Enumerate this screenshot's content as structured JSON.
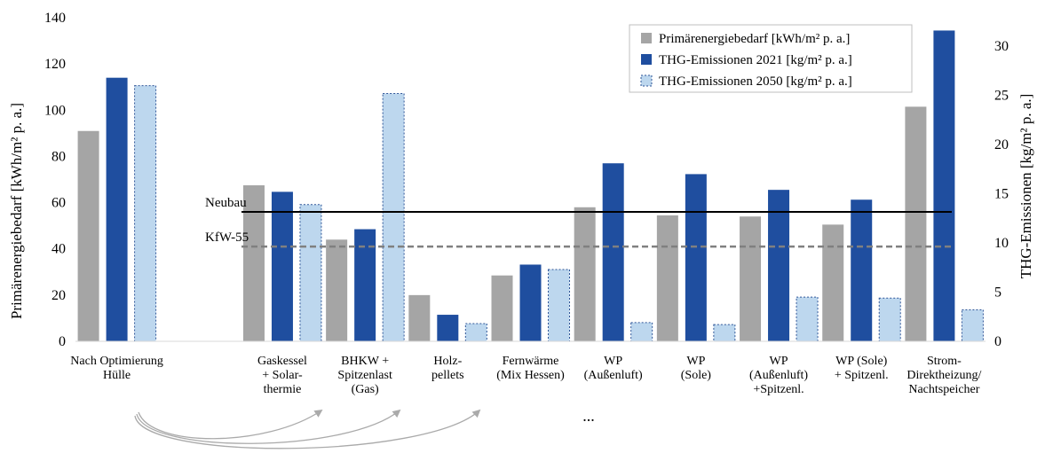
{
  "chart_data": {
    "type": "bar",
    "categories": [
      [
        "Nach Optimierung",
        "Hülle"
      ],
      [],
      [
        "Gaskessel",
        "+ Solar-",
        "thermie"
      ],
      [
        "BHKW +",
        "Spitzenlast",
        "(Gas)"
      ],
      [
        "Holz-",
        "pellets"
      ],
      [
        "Fernwärme",
        "(Mix Hessen)"
      ],
      [
        "WP",
        "(Außenluft)"
      ],
      [
        "WP",
        "(Sole)"
      ],
      [
        "WP",
        "(Außenluft)",
        "+Spitzenl."
      ],
      [
        "WP (Sole)",
        "+ Spitzenl."
      ],
      [
        "Strom-",
        "Direktheizung/",
        "Nachtspeicher"
      ]
    ],
    "series": [
      {
        "name": "Primärenergiebedarf [kWh/m² p. a.]",
        "axis": "left",
        "color": "#a5a5a5",
        "style": "solid",
        "values": [
          91,
          null,
          67.5,
          44,
          20,
          28.5,
          58,
          54.5,
          54,
          50.5,
          101.5
        ]
      },
      {
        "name": "THG-Emissionen 2021 [kg/m² p. a.]",
        "axis": "right",
        "color": "#1f4e9f",
        "style": "solid",
        "values": [
          26.8,
          null,
          15.2,
          11.4,
          2.7,
          7.8,
          18.1,
          17.0,
          15.4,
          14.4,
          31.6
        ]
      },
      {
        "name": "THG-Emissionen 2050 [kg/m² p. a.]",
        "axis": "right",
        "color": "#bdd7ee",
        "style": "dashed",
        "values": [
          26.0,
          null,
          13.9,
          25.2,
          1.8,
          7.3,
          1.9,
          1.7,
          4.5,
          4.4,
          3.2
        ]
      }
    ],
    "y_left": {
      "label": "Primärenergiebedarf [kWh/m² p. a.]",
      "min": 0,
      "max": 140,
      "ticks": [
        0,
        20,
        40,
        60,
        80,
        100,
        120,
        140
      ]
    },
    "y_right": {
      "label": "THG-Emissionen [kg/m² p. a.]",
      "min": 0,
      "max": 32,
      "ticks": [
        0,
        5,
        10,
        15,
        20,
        25,
        30
      ]
    },
    "reference_lines": [
      {
        "label": "Neubau",
        "value": 56,
        "axis": "left",
        "style": "solid",
        "color": "#000000"
      },
      {
        "label": "KfW-55",
        "value": 41,
        "axis": "left",
        "style": "dashed",
        "color": "#808080"
      }
    ],
    "annotations": {
      "ellipsis": "..."
    },
    "legend_position": "top-right",
    "grid": false
  }
}
